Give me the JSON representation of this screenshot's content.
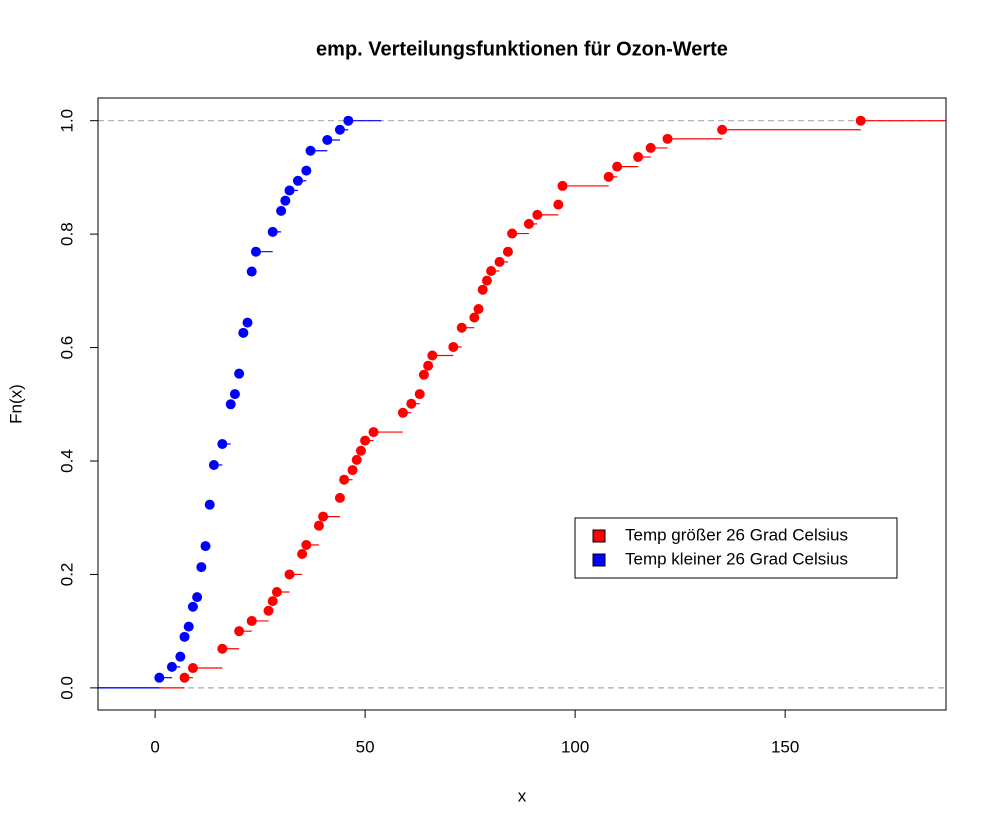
{
  "chart_data": {
    "type": "ecdf",
    "title": "emp. Verteilungsfunktionen für Ozon-Werte",
    "x_label": "x",
    "y_label": "Fn(x)",
    "xlim": [
      -13.6,
      188.3
    ],
    "ylim": [
      -0.039,
      1.04
    ],
    "xticks": [
      0,
      50,
      100,
      150
    ],
    "yticks": [
      {
        "value": 0,
        "label": "0.0"
      },
      0.2,
      0.4,
      0.6,
      0.8,
      {
        "value": 1,
        "label": "1.0"
      }
    ],
    "reference_lines": [
      0,
      1
    ],
    "legend_position": "right",
    "series": [
      {
        "name": "Temp größer 26 Grad Celsius",
        "color": "#ff0000",
        "x": [
          7,
          9,
          16,
          20,
          23,
          27,
          28,
          29,
          32,
          35,
          36,
          39,
          40,
          44,
          45,
          47,
          48,
          49,
          50,
          52,
          59,
          61,
          63,
          64,
          65,
          66,
          71,
          73,
          76,
          77,
          78,
          79,
          80,
          82,
          84,
          85,
          89,
          91,
          96,
          97,
          108,
          110,
          115,
          118,
          122,
          135,
          168
        ],
        "values": [
          0.018,
          0.035,
          0.069,
          0.1,
          0.118,
          0.136,
          0.153,
          0.169,
          0.2,
          0.236,
          0.252,
          0.286,
          0.302,
          0.335,
          0.367,
          0.384,
          0.402,
          0.418,
          0.436,
          0.451,
          0.485,
          0.501,
          0.518,
          0.552,
          0.568,
          0.586,
          0.601,
          0.635,
          0.653,
          0.668,
          0.702,
          0.718,
          0.735,
          0.751,
          0.769,
          0.801,
          0.818,
          0.834,
          0.852,
          0.885,
          0.901,
          0.919,
          0.936,
          0.952,
          0.968,
          0.984,
          1.0
        ]
      },
      {
        "name": "Temp kleiner 26 Grad Celsius",
        "color": "#0000ff",
        "x": [
          1,
          4,
          6,
          7,
          8,
          9,
          10,
          11,
          12,
          13,
          14,
          16,
          18,
          19,
          20,
          21,
          22,
          23,
          24,
          28,
          30,
          31,
          32,
          34,
          36,
          37,
          41,
          44,
          46
        ],
        "values": [
          0.018,
          0.037,
          0.055,
          0.09,
          0.108,
          0.143,
          0.16,
          0.213,
          0.25,
          0.323,
          0.393,
          0.43,
          0.5,
          0.518,
          0.554,
          0.626,
          0.644,
          0.734,
          0.769,
          0.804,
          0.841,
          0.859,
          0.877,
          0.894,
          0.912,
          0.947,
          0.966,
          0.984,
          1.0
        ]
      }
    ]
  }
}
